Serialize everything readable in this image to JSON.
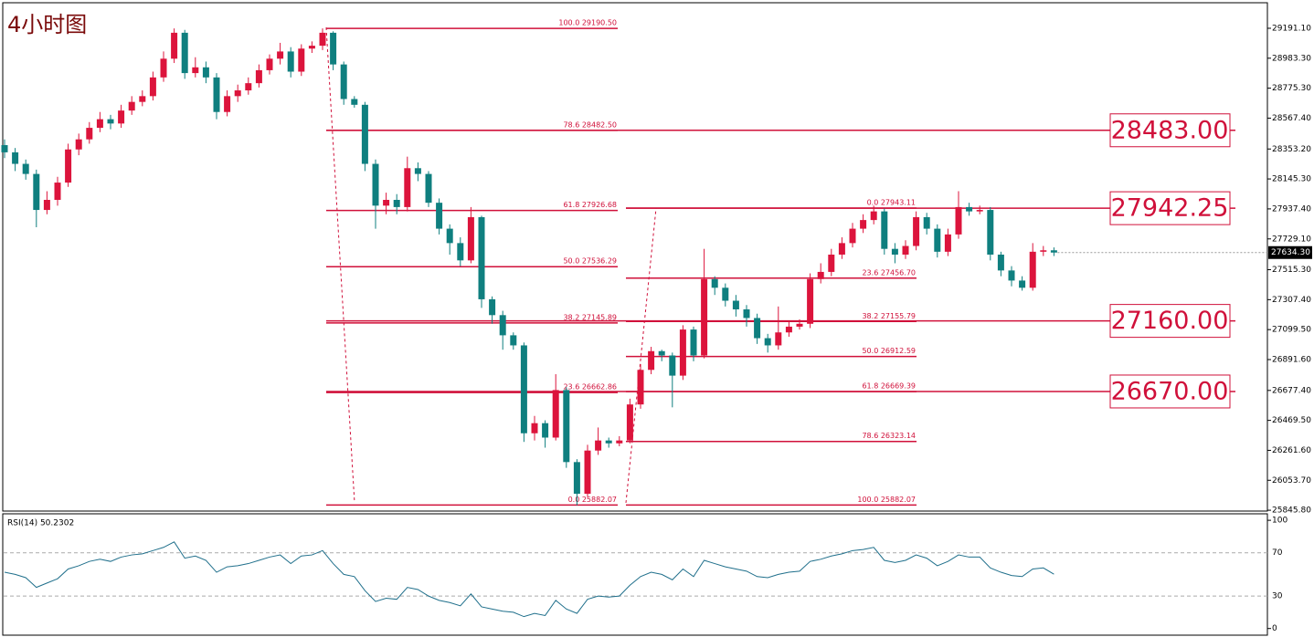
{
  "title": "4小时图",
  "chart_data": {
    "type": "candlestick",
    "up_color": "#dc143c",
    "down_color": "#0f7f7f",
    "level_color": "#d0103a",
    "open": [
      28380,
      28330,
      28250,
      28180,
      27930,
      28000,
      28120,
      28350,
      28420,
      28500,
      28560,
      28530,
      28620,
      28680,
      28720,
      28850,
      28980,
      29160,
      28880,
      28920,
      28850,
      28610,
      28720,
      28760,
      28810,
      28900,
      28980,
      29030,
      28890,
      29050,
      29070,
      29160,
      28940,
      28700,
      28660,
      28250,
      27960,
      28000,
      27950,
      28220,
      28180,
      27980,
      27800,
      27700,
      27580,
      27880,
      27310,
      27200,
      27060,
      26990,
      26380,
      26450,
      26350,
      26680,
      26180,
      25960,
      26260,
      26330,
      26310,
      26330,
      26580,
      26820,
      26950,
      26920,
      26780,
      27100,
      26920,
      27450,
      27390,
      27300,
      27240,
      27180,
      27040,
      26990,
      27080,
      27120,
      27140,
      27450,
      27500,
      27620,
      27700,
      27800,
      27860,
      27920,
      27660,
      27620,
      27680,
      27880,
      27800,
      27640,
      27760,
      27950,
      27920,
      27930,
      27620,
      27510,
      27440,
      27390,
      27640,
      27650
    ],
    "high": [
      28420,
      28360,
      28280,
      28210,
      28060,
      28160,
      28390,
      28460,
      28540,
      28610,
      28590,
      28660,
      28720,
      28760,
      28890,
      29030,
      29190,
      29180,
      28990,
      28960,
      28880,
      28760,
      28800,
      28850,
      28940,
      29010,
      29090,
      29060,
      29080,
      29100,
      29190,
      29170,
      28960,
      28720,
      28680,
      28280,
      28050,
      28040,
      28300,
      28260,
      28200,
      28010,
      27830,
      27740,
      27950,
      27890,
      27330,
      27230,
      27080,
      27010,
      26500,
      26470,
      26790,
      26700,
      26200,
      26300,
      26420,
      26350,
      26360,
      26620,
      26860,
      26980,
      26960,
      26940,
      27130,
      27120,
      27660,
      27470,
      27420,
      27340,
      27270,
      27210,
      27070,
      27260,
      27160,
      27170,
      27490,
      27560,
      27660,
      27740,
      27840,
      27900,
      27960,
      27940,
      27700,
      27720,
      27920,
      27910,
      27830,
      27800,
      28060,
      27980,
      27960,
      27950,
      27640,
      27540,
      27470,
      27700,
      27680,
      27670
    ],
    "low": [
      28290,
      28200,
      28140,
      27810,
      27900,
      27960,
      28090,
      28310,
      28390,
      28470,
      28490,
      28500,
      28590,
      28650,
      28690,
      28820,
      28950,
      28840,
      28850,
      28810,
      28560,
      28580,
      28680,
      28730,
      28780,
      28870,
      28940,
      28850,
      28860,
      29020,
      29040,
      28900,
      28660,
      28640,
      28200,
      27800,
      27900,
      27900,
      27920,
      28130,
      27950,
      27760,
      27620,
      27540,
      27560,
      27250,
      27140,
      26960,
      26960,
      26320,
      26330,
      26280,
      26330,
      26140,
      25880,
      25940,
      26230,
      26280,
      26290,
      26310,
      26550,
      26790,
      26880,
      26560,
      26750,
      26880,
      26900,
      27340,
      27260,
      27190,
      27120,
      27000,
      26940,
      26960,
      27050,
      27100,
      27110,
      27420,
      27470,
      27590,
      27670,
      27770,
      27830,
      27620,
      27560,
      27590,
      27650,
      27760,
      27600,
      27610,
      27730,
      27890,
      27900,
      27580,
      27470,
      27400,
      27370,
      27370,
      27610,
      27610
    ],
    "close": [
      28330,
      28250,
      28180,
      27930,
      28000,
      28120,
      28350,
      28420,
      28500,
      28560,
      28530,
      28620,
      28680,
      28720,
      28850,
      28980,
      29160,
      28880,
      28920,
      28850,
      28610,
      28720,
      28760,
      28810,
      28900,
      28980,
      29030,
      28890,
      29050,
      29070,
      29160,
      28940,
      28700,
      28660,
      28250,
      27960,
      28000,
      27950,
      28220,
      28180,
      27980,
      27800,
      27700,
      27580,
      27880,
      27310,
      27200,
      27060,
      26990,
      26380,
      26450,
      26350,
      26680,
      26180,
      25960,
      26260,
      26330,
      26310,
      26330,
      26580,
      26820,
      26950,
      26920,
      26780,
      27100,
      26920,
      27450,
      27390,
      27300,
      27240,
      27180,
      27040,
      26990,
      27080,
      27120,
      27140,
      27450,
      27500,
      27620,
      27700,
      27800,
      27860,
      27920,
      27660,
      27620,
      27680,
      27880,
      27800,
      27640,
      27760,
      27950,
      27920,
      27930,
      27620,
      27510,
      27440,
      27390,
      27640,
      27650,
      27634.3
    ],
    "ylim": [
      25840,
      29362
    ],
    "yticks": [
      {
        "value": 29191.1,
        "label": "29191.10"
      },
      {
        "value": 28983.3,
        "label": "28983.30"
      },
      {
        "value": 28775.3,
        "label": "28775.30"
      },
      {
        "value": 28567.4,
        "label": "28567.40"
      },
      {
        "value": 28353.2,
        "label": "28353.20"
      },
      {
        "value": 28145.3,
        "label": "28145.30"
      },
      {
        "value": 27937.4,
        "label": "27937.40"
      },
      {
        "value": 27729.1,
        "label": "27729.10"
      },
      {
        "value": 27515.3,
        "label": "27515.30"
      },
      {
        "value": 27307.4,
        "label": "27307.40"
      },
      {
        "value": 27099.5,
        "label": "27099.50"
      },
      {
        "value": 26891.6,
        "label": "26891.60"
      },
      {
        "value": 26677.4,
        "label": "26677.40"
      },
      {
        "value": 26469.5,
        "label": "26469.50"
      },
      {
        "value": 26261.6,
        "label": "26261.60"
      },
      {
        "value": 26053.7,
        "label": "26053.70"
      },
      {
        "value": 25845.8,
        "label": "25845.80"
      }
    ],
    "price_marker": {
      "value": 27634.3,
      "label": "27634.30"
    },
    "fib_sets": [
      [
        {
          "value": 29190.5,
          "label": "100.0  29190.50"
        },
        {
          "value": 28482.5,
          "label": "78.6  28482.50"
        },
        {
          "value": 27926.68,
          "label": "61.8  27926.68"
        },
        {
          "value": 27536.29,
          "label": "50.0  27536.29"
        },
        {
          "value": 27145.89,
          "label": "38.2  27145.89"
        },
        {
          "value": 26662.86,
          "label": "23.6  26662.86"
        },
        {
          "value": 25882.07,
          "label": "0.0  25882.07"
        }
      ],
      [
        {
          "value": 27943.11,
          "label": "0.0  27943.11"
        },
        {
          "value": 27456.7,
          "label": "23.6  27456.70"
        },
        {
          "value": 27155.79,
          "label": "38.2  27155.79"
        },
        {
          "value": 26912.59,
          "label": "50.0  26912.59"
        },
        {
          "value": 26669.39,
          "label": "61.8  26669.39"
        },
        {
          "value": 26323.14,
          "label": "78.6  26323.14"
        },
        {
          "value": 25882.07,
          "label": "100.0  25882.07"
        }
      ]
    ],
    "levels": [
      {
        "value": 28483,
        "label": "28483.00"
      },
      {
        "value": 27942.25,
        "label": "27942.25"
      },
      {
        "value": 27160,
        "label": "27160.00"
      },
      {
        "value": 26670,
        "label": "26670.00"
      }
    ],
    "rsi": {
      "label": "RSI(14) 50.2302",
      "color": "#1f6f8b",
      "values": [
        52,
        50,
        47,
        38,
        42,
        46,
        55,
        58,
        62,
        64,
        62,
        66,
        68,
        69,
        72,
        75,
        80,
        65,
        67,
        63,
        52,
        57,
        58,
        60,
        63,
        66,
        68,
        60,
        67,
        68,
        72,
        60,
        50,
        48,
        35,
        25,
        28,
        27,
        38,
        36,
        30,
        26,
        24,
        21,
        32,
        20,
        18,
        16,
        15,
        11,
        14,
        12,
        26,
        18,
        14,
        27,
        30,
        29,
        30,
        40,
        48,
        52,
        50,
        45,
        55,
        48,
        63,
        60,
        57,
        55,
        53,
        48,
        47,
        50,
        52,
        53,
        62,
        64,
        67,
        69,
        72,
        73,
        75,
        63,
        61,
        63,
        68,
        65,
        58,
        62,
        68,
        66,
        66,
        56,
        52,
        49,
        48,
        55,
        56,
        50.2302
      ],
      "ylim": [
        -7,
        106
      ],
      "yticks": [
        0,
        30,
        70,
        100
      ]
    }
  }
}
